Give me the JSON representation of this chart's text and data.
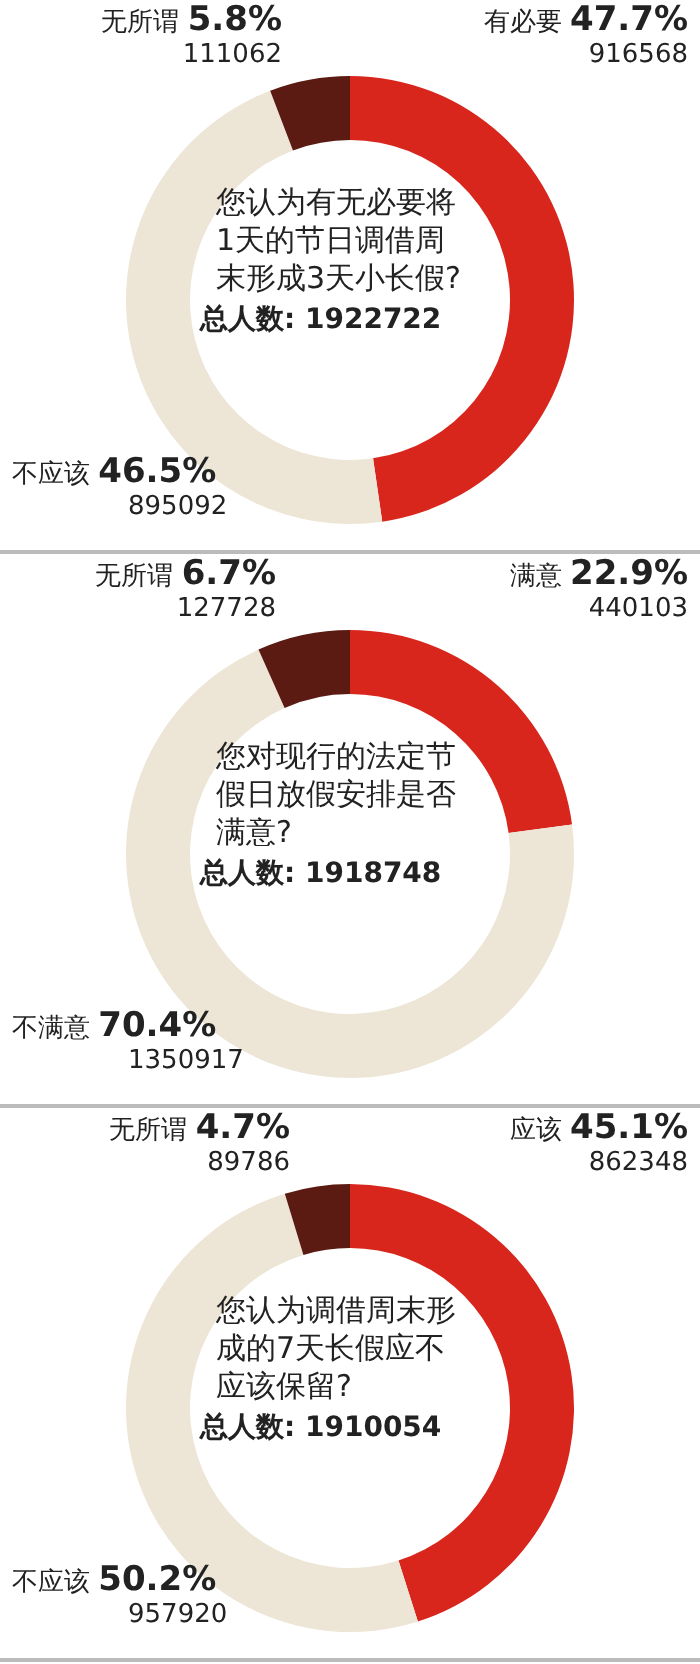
{
  "chart_data": [
    {
      "type": "donut",
      "title": "您认为有无必要将1天的节日调借周末形成3天小长假?",
      "categories": [
        "有必要",
        "不应该",
        "无所谓"
      ],
      "values": [
        47.7,
        46.5,
        5.8
      ],
      "value_labels": [
        "47.7%",
        "46.5%",
        "5.8%"
      ],
      "colors": [
        "#d8261d",
        "#ede5d6",
        "#5b1a12"
      ],
      "legend": false,
      "annotations": [
        {
          "text": "916568",
          "x": "有必要"
        },
        {
          "text": "895092",
          "x": "不应该"
        },
        {
          "text": "111062",
          "x": "无所谓"
        },
        "总人数: 1922722"
      ]
    },
    {
      "type": "donut",
      "title": "您对现行的法定节假日放假安排是否满意?",
      "categories": [
        "满意",
        "不满意",
        "无所谓"
      ],
      "values": [
        22.9,
        70.4,
        6.7
      ],
      "value_labels": [
        "22.9%",
        "70.4%",
        "6.7%"
      ],
      "colors": [
        "#d8261d",
        "#ede5d6",
        "#5b1a12"
      ],
      "legend": false,
      "annotations": [
        {
          "text": "440103",
          "x": "满意"
        },
        {
          "text": "1350917",
          "x": "不满意"
        },
        {
          "text": "127728",
          "x": "无所谓"
        },
        "总人数: 1918748"
      ]
    },
    {
      "type": "donut",
      "title": "您认为调借周末形成的7天长假应不应该保留?",
      "categories": [
        "应该",
        "不应该",
        "无所谓"
      ],
      "values": [
        45.1,
        50.2,
        4.7
      ],
      "value_labels": [
        "45.1%",
        "50.2%",
        "4.7%"
      ],
      "colors": [
        "#d8261d",
        "#ede5d6",
        "#5b1a12"
      ],
      "legend": false,
      "annotations": [
        {
          "text": "862348",
          "x": "应该"
        },
        {
          "text": "957920",
          "x": "不应该"
        },
        {
          "text": "89786",
          "x": "无所谓"
        },
        "总人数: 1910054"
      ]
    }
  ]
}
